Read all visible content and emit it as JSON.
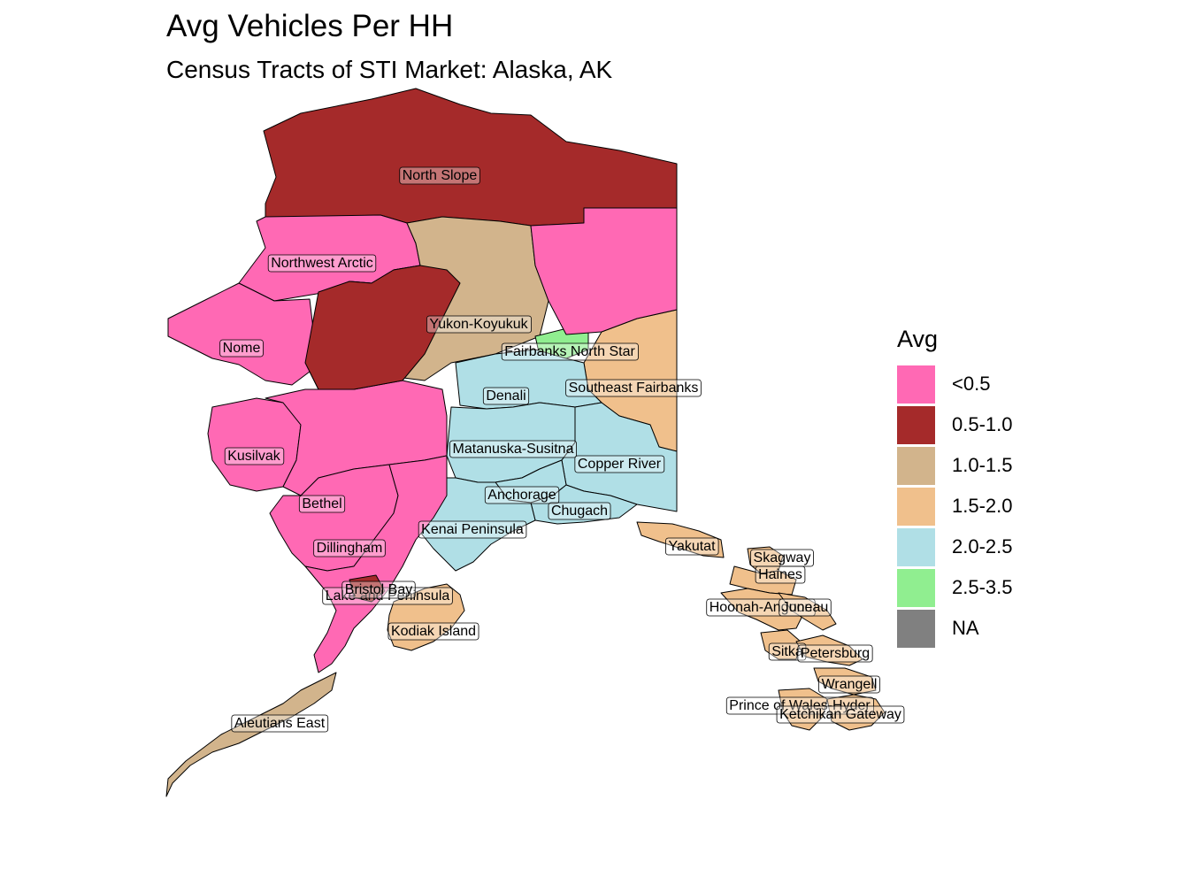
{
  "title": "Avg Vehicles Per HH",
  "subtitle": "Census Tracts of STI Market: Alaska, AK",
  "legend": {
    "title": "Avg",
    "items": [
      {
        "label": "<0.5",
        "color": "#FF69B4"
      },
      {
        "label": "0.5-1.0",
        "color": "#A52A2A"
      },
      {
        "label": "1.0-1.5",
        "color": "#D2B48C"
      },
      {
        "label": "1.5-2.0",
        "color": "#F0C08C"
      },
      {
        "label": "2.0-2.5",
        "color": "#B0DFE6"
      },
      {
        "label": "2.5-3.5",
        "color": "#90EE90"
      },
      {
        "label": "NA",
        "color": "#808080"
      }
    ]
  },
  "regions": [
    {
      "name": "North Slope",
      "category": "0.5-1.0"
    },
    {
      "name": "Northwest Arctic",
      "category": "<0.5"
    },
    {
      "name": "Yukon-Koyukuk",
      "category": "1.0-1.5"
    },
    {
      "name": "Nome",
      "category": "<0.5"
    },
    {
      "name": "Fairbanks North Star",
      "category": "2.5-3.5"
    },
    {
      "name": "Southeast Fairbanks",
      "category": "1.5-2.0"
    },
    {
      "name": "Denali",
      "category": "2.0-2.5"
    },
    {
      "name": "Matanuska-Susitna",
      "category": "2.0-2.5"
    },
    {
      "name": "Kusilvak",
      "category": "<0.5"
    },
    {
      "name": "Copper River",
      "category": "2.0-2.5"
    },
    {
      "name": "Anchorage",
      "category": "2.0-2.5"
    },
    {
      "name": "Bethel",
      "category": "<0.5"
    },
    {
      "name": "Chugach",
      "category": "2.0-2.5"
    },
    {
      "name": "Kenai Peninsula",
      "category": "2.0-2.5"
    },
    {
      "name": "Dillingham",
      "category": "<0.5"
    },
    {
      "name": "Yakutat",
      "category": "1.5-2.0"
    },
    {
      "name": "Skagway",
      "category": "1.5-2.0"
    },
    {
      "name": "Haines",
      "category": "1.5-2.0"
    },
    {
      "name": "Lake and Peninsula",
      "category": "<0.5"
    },
    {
      "name": "Bristol Bay",
      "category": "0.5-1.0"
    },
    {
      "name": "Hoonah-Angoon",
      "category": "1.5-2.0"
    },
    {
      "name": "Juneau",
      "category": "1.5-2.0"
    },
    {
      "name": "Kodiak Island",
      "category": "1.5-2.0"
    },
    {
      "name": "Sitka",
      "category": "1.5-2.0"
    },
    {
      "name": "Petersburg",
      "category": "1.5-2.0"
    },
    {
      "name": "Wrangell",
      "category": "1.5-2.0"
    },
    {
      "name": "Prince of Wales-Hyder",
      "category": "1.5-2.0"
    },
    {
      "name": "Ketchikan Gateway",
      "category": "1.5-2.0"
    },
    {
      "name": "Aleutians East",
      "category": "1.0-1.5"
    }
  ]
}
